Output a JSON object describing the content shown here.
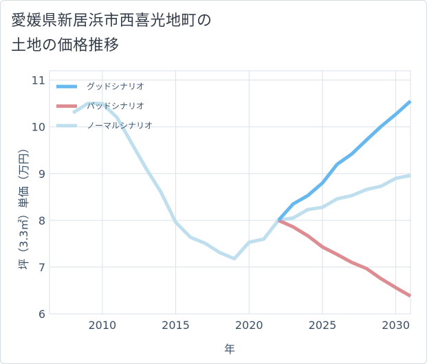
{
  "chart_data": {
    "type": "line",
    "title": "愛媛県新居浜市西喜光地町の\n土地の価格推移",
    "xlabel": "年",
    "ylabel": "坪（3.3㎡）単価（万円）",
    "xlim": [
      2006.4,
      2031.0
    ],
    "ylim": [
      6,
      11.2
    ],
    "xticks": [
      2010,
      2015,
      2020,
      2025,
      2030
    ],
    "yticks": [
      6,
      7,
      8,
      9,
      10,
      11
    ],
    "grid": true,
    "legend_position": "top-left",
    "series": [
      {
        "name": "グッドシナリオ",
        "color": "#66b8ee",
        "x": [
          2022,
          2023,
          2024,
          2025,
          2026,
          2027,
          2028,
          2029,
          2030,
          2031
        ],
        "y": [
          8.0,
          8.35,
          8.53,
          8.8,
          9.2,
          9.42,
          9.72,
          10.01,
          10.27,
          10.55
        ]
      },
      {
        "name": "バッドシナリオ",
        "color": "#dd8c92",
        "x": [
          2022,
          2023,
          2024,
          2025,
          2026,
          2027,
          2028,
          2029,
          2030,
          2031
        ],
        "y": [
          8.0,
          7.86,
          7.67,
          7.43,
          7.27,
          7.1,
          6.97,
          6.75,
          6.56,
          6.38
        ]
      },
      {
        "name": "ノーマルシナリオ",
        "color": "#bfdfee",
        "x": [
          2008,
          2009,
          2010,
          2011,
          2012,
          2013,
          2014,
          2015,
          2016,
          2017,
          2018,
          2019,
          2020,
          2021,
          2022,
          2023,
          2024,
          2025,
          2026,
          2027,
          2028,
          2029,
          2030,
          2031
        ],
        "y": [
          10.3,
          10.5,
          10.5,
          10.2,
          9.65,
          9.1,
          8.6,
          7.96,
          7.64,
          7.51,
          7.31,
          7.18,
          7.53,
          7.6,
          8.0,
          8.05,
          8.23,
          8.28,
          8.46,
          8.53,
          8.66,
          8.73,
          8.9,
          8.96
        ]
      }
    ]
  }
}
